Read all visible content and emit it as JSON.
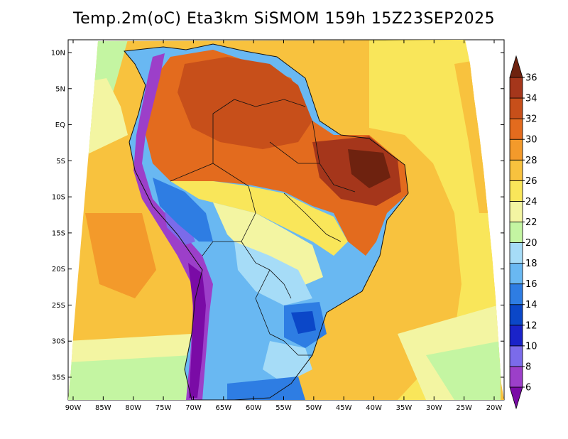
{
  "title": "Temp.2m(oC) Eta3km SiSMOM 159h 15Z23SEP2025",
  "map": {
    "lat_labels": [
      "10N",
      "5N",
      "EQ",
      "5S",
      "10S",
      "15S",
      "20S",
      "25S",
      "30S",
      "35S"
    ],
    "lat_values": [
      10,
      5,
      0,
      -5,
      -10,
      -15,
      -20,
      -25,
      -30,
      -35
    ],
    "lon_labels": [
      "90W",
      "85W",
      "80W",
      "75W",
      "70W",
      "65W",
      "60W",
      "55W",
      "50W",
      "45W",
      "40W",
      "35W",
      "30W",
      "25W",
      "20W"
    ],
    "lon_values": [
      -90,
      -85,
      -80,
      -75,
      -70,
      -65,
      -60,
      -55,
      -50,
      -45,
      -40,
      -35,
      -30,
      -25,
      -20
    ]
  },
  "colorbar": {
    "levels": [
      "6",
      "8",
      "10",
      "12",
      "14",
      "16",
      "18",
      "20",
      "22",
      "24",
      "26",
      "28",
      "30",
      "32",
      "34",
      "36"
    ],
    "colors": [
      "#7a0ba6",
      "#9c3fc9",
      "#7b6bea",
      "#1a23c9",
      "#0b47c8",
      "#2e7de3",
      "#69b8f2",
      "#a6dcf7",
      "#c4f5a2",
      "#f3f5a2",
      "#f9e65a",
      "#f8c23e",
      "#f39a2b",
      "#e36b1e",
      "#c74f1a",
      "#a5361b",
      "#6e220f"
    ]
  },
  "colors": {
    "ocean_warm": "#f8c23e",
    "ocean_mid": "#f9e65a",
    "amazon_hot": "#e36b1e",
    "northeast_hot": "#a5361b",
    "andes_cold": "#9c3fc9",
    "south_cool": "#69b8f2"
  }
}
